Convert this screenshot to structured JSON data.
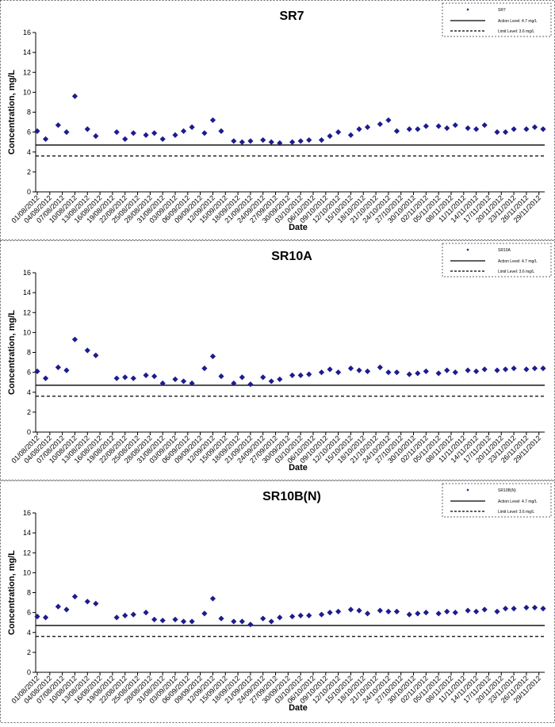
{
  "chart_data": [
    {
      "type": "scatter",
      "title": "SR7",
      "xlabel": "Date",
      "ylabel": "Concentration, mg/L",
      "ylim": [
        0,
        16
      ],
      "yticks": [
        0,
        2,
        4,
        6,
        8,
        10,
        12,
        14,
        16
      ],
      "xlim": [
        "01/08/2012",
        "30/11/2012"
      ],
      "xticks": [
        "01/08/2012",
        "04/08/2012",
        "07/08/2012",
        "10/08/2012",
        "13/08/2012",
        "16/08/2012",
        "19/08/2012",
        "22/08/2012",
        "25/08/2012",
        "28/08/2012",
        "31/08/2012",
        "03/09/2012",
        "06/09/2012",
        "09/09/2012",
        "12/09/2012",
        "15/09/2012",
        "18/09/2012",
        "21/09/2012",
        "24/09/2012",
        "27/09/2012",
        "30/09/2012",
        "03/10/2012",
        "06/10/2012",
        "09/10/2012",
        "12/10/2012",
        "15/10/2012",
        "18/10/2012",
        "21/10/2012",
        "24/10/2012",
        "27/10/2012",
        "30/10/2012",
        "02/11/2012",
        "05/11/2012",
        "08/11/2012",
        "11/11/2012",
        "14/11/2012",
        "17/11/2012",
        "20/11/2012",
        "23/11/2012",
        "26/11/2012",
        "29/11/2012"
      ],
      "series": [
        {
          "name": "SR7",
          "color": "#1c1c8f",
          "x": [
            "01/08/2012",
            "03/08/2012",
            "06/08/2012",
            "08/08/2012",
            "10/08/2012",
            "13/08/2012",
            "15/08/2012",
            "20/08/2012",
            "22/08/2012",
            "24/08/2012",
            "27/08/2012",
            "29/08/2012",
            "31/08/2012",
            "03/09/2012",
            "05/09/2012",
            "07/09/2012",
            "10/09/2012",
            "12/09/2012",
            "14/09/2012",
            "17/09/2012",
            "19/09/2012",
            "21/09/2012",
            "24/09/2012",
            "26/09/2012",
            "28/09/2012",
            "01/10/2012",
            "03/10/2012",
            "05/10/2012",
            "08/10/2012",
            "10/10/2012",
            "12/10/2012",
            "15/10/2012",
            "17/10/2012",
            "19/10/2012",
            "22/10/2012",
            "24/10/2012",
            "26/10/2012",
            "29/10/2012",
            "31/10/2012",
            "02/11/2012",
            "05/11/2012",
            "07/11/2012",
            "09/11/2012",
            "12/11/2012",
            "14/11/2012",
            "16/11/2012",
            "19/11/2012",
            "21/11/2012",
            "23/11/2012",
            "26/11/2012",
            "28/11/2012",
            "30/11/2012"
          ],
          "values": [
            6.1,
            5.3,
            6.7,
            6.0,
            9.6,
            6.3,
            5.6,
            6.0,
            5.3,
            5.9,
            5.7,
            5.9,
            5.3,
            5.7,
            6.1,
            6.5,
            5.9,
            7.2,
            6.1,
            5.1,
            5.0,
            5.1,
            5.2,
            5.0,
            4.9,
            5.0,
            5.1,
            5.2,
            5.2,
            5.6,
            6.0,
            5.7,
            6.3,
            6.5,
            6.8,
            7.2,
            6.1,
            6.3,
            6.3,
            6.6,
            6.6,
            6.4,
            6.7,
            6.4,
            6.3,
            6.7,
            6.0,
            6.0,
            6.3,
            6.3,
            6.5,
            6.3
          ]
        }
      ],
      "reference_lines": [
        {
          "name": "Action Level: 4.7 mg/L",
          "value": 4.7,
          "dash": false,
          "color": "#000000"
        },
        {
          "name": "Limit Level: 3.6 mg/L",
          "value": 3.6,
          "dash": true,
          "color": "#000000"
        }
      ]
    },
    {
      "type": "scatter",
      "title": "SR10A",
      "xlabel": "Date",
      "ylabel": "Concentration, mg/L",
      "ylim": [
        0,
        16
      ],
      "yticks": [
        0,
        2,
        4,
        6,
        8,
        10,
        12,
        14,
        16
      ],
      "xlim": [
        "01/08/2012",
        "30/11/2012"
      ],
      "xticks": [
        "01/08/2012",
        "04/08/2012",
        "07/08/2012",
        "10/08/2012",
        "13/08/2012",
        "16/08/2012",
        "19/08/2012",
        "22/08/2012",
        "25/08/2012",
        "28/08/2012",
        "31/08/2012",
        "03/09/2012",
        "06/09/2012",
        "09/09/2012",
        "12/09/2012",
        "15/09/2012",
        "18/09/2012",
        "21/09/2012",
        "24/09/2012",
        "27/09/2012",
        "30/09/2012",
        "03/10/2012",
        "06/10/2012",
        "09/10/2012",
        "12/10/2012",
        "15/10/2012",
        "18/10/2012",
        "21/10/2012",
        "24/10/2012",
        "27/10/2012",
        "30/10/2012",
        "02/11/2012",
        "05/11/2012",
        "08/11/2012",
        "11/11/2012",
        "14/11/2012",
        "17/11/2012",
        "20/11/2012",
        "23/11/2012",
        "26/11/2012",
        "29/11/2012"
      ],
      "series": [
        {
          "name": "SR10A",
          "color": "#1c1c8f",
          "x": [
            "01/08/2012",
            "03/08/2012",
            "06/08/2012",
            "08/08/2012",
            "10/08/2012",
            "13/08/2012",
            "15/08/2012",
            "20/08/2012",
            "22/08/2012",
            "24/08/2012",
            "27/08/2012",
            "29/08/2012",
            "31/08/2012",
            "03/09/2012",
            "05/09/2012",
            "07/09/2012",
            "10/09/2012",
            "12/09/2012",
            "14/09/2012",
            "17/09/2012",
            "19/09/2012",
            "21/09/2012",
            "24/09/2012",
            "26/09/2012",
            "28/09/2012",
            "01/10/2012",
            "03/10/2012",
            "05/10/2012",
            "08/10/2012",
            "10/10/2012",
            "12/10/2012",
            "15/10/2012",
            "17/10/2012",
            "19/10/2012",
            "22/10/2012",
            "24/10/2012",
            "26/10/2012",
            "29/10/2012",
            "31/10/2012",
            "02/11/2012",
            "05/11/2012",
            "07/11/2012",
            "09/11/2012",
            "12/11/2012",
            "14/11/2012",
            "16/11/2012",
            "19/11/2012",
            "21/11/2012",
            "23/11/2012",
            "26/11/2012",
            "28/11/2012",
            "30/11/2012"
          ],
          "values": [
            6.1,
            5.4,
            6.5,
            6.2,
            9.3,
            8.2,
            7.7,
            5.4,
            5.5,
            5.4,
            5.7,
            5.6,
            4.9,
            5.3,
            5.1,
            4.9,
            6.4,
            7.6,
            5.6,
            4.9,
            5.5,
            4.8,
            5.5,
            5.1,
            5.3,
            5.7,
            5.7,
            5.8,
            6.0,
            6.3,
            6.0,
            6.4,
            6.2,
            6.1,
            6.5,
            6.0,
            6.0,
            5.8,
            5.9,
            6.1,
            5.9,
            6.2,
            6.0,
            6.2,
            6.1,
            6.3,
            6.2,
            6.3,
            6.4,
            6.3,
            6.4,
            6.4
          ]
        }
      ],
      "reference_lines": [
        {
          "name": "Action Level: 4.7 mg/L",
          "value": 4.7,
          "dash": false,
          "color": "#000000"
        },
        {
          "name": "Limit Level: 3.6 mg/L",
          "value": 3.6,
          "dash": true,
          "color": "#000000"
        }
      ]
    },
    {
      "type": "scatter",
      "title": "SR10B(N)",
      "xlabel": "Date",
      "ylabel": "Concentration, mg/L",
      "ylim": [
        0,
        16
      ],
      "yticks": [
        0,
        2,
        4,
        6,
        8,
        10,
        12,
        14,
        16
      ],
      "xlim": [
        "01/08/2012",
        "30/11/2012"
      ],
      "xticks": [
        "01/08/2012",
        "04/08/2012",
        "07/08/2012",
        "10/08/2012",
        "13/08/2012",
        "16/08/2012",
        "19/08/2012",
        "22/08/2012",
        "25/08/2012",
        "28/08/2012",
        "31/08/2012",
        "03/09/2012",
        "06/09/2012",
        "09/09/2012",
        "12/09/2012",
        "15/09/2012",
        "18/09/2012",
        "21/09/2012",
        "24/09/2012",
        "27/09/2012",
        "30/09/2012",
        "03/10/2012",
        "06/10/2012",
        "09/10/2012",
        "12/10/2012",
        "15/10/2012",
        "18/10/2012",
        "21/10/2012",
        "24/10/2012",
        "27/10/2012",
        "30/10/2012",
        "02/11/2012",
        "05/11/2012",
        "08/11/2012",
        "11/11/2012",
        "14/11/2012",
        "17/11/2012",
        "20/11/2012",
        "23/11/2012",
        "26/11/2012",
        "29/11/2012"
      ],
      "series": [
        {
          "name": "SR10B(N)",
          "color": "#1c1c8f",
          "x": [
            "01/08/2012",
            "03/08/2012",
            "06/08/2012",
            "08/08/2012",
            "10/08/2012",
            "13/08/2012",
            "15/08/2012",
            "20/08/2012",
            "22/08/2012",
            "24/08/2012",
            "27/08/2012",
            "29/08/2012",
            "31/08/2012",
            "03/09/2012",
            "05/09/2012",
            "07/09/2012",
            "10/09/2012",
            "12/09/2012",
            "14/09/2012",
            "17/09/2012",
            "19/09/2012",
            "21/09/2012",
            "24/09/2012",
            "26/09/2012",
            "28/09/2012",
            "01/10/2012",
            "03/10/2012",
            "05/10/2012",
            "08/10/2012",
            "10/10/2012",
            "12/10/2012",
            "15/10/2012",
            "17/10/2012",
            "19/10/2012",
            "22/10/2012",
            "24/10/2012",
            "26/10/2012",
            "29/10/2012",
            "31/10/2012",
            "02/11/2012",
            "05/11/2012",
            "07/11/2012",
            "09/11/2012",
            "12/11/2012",
            "14/11/2012",
            "16/11/2012",
            "19/11/2012",
            "21/11/2012",
            "23/11/2012",
            "26/11/2012",
            "28/11/2012",
            "30/11/2012"
          ],
          "values": [
            5.6,
            5.5,
            6.6,
            6.3,
            7.6,
            7.1,
            6.9,
            5.5,
            5.7,
            5.8,
            6.0,
            5.3,
            5.2,
            5.3,
            5.1,
            5.1,
            5.9,
            7.4,
            5.4,
            5.1,
            5.1,
            4.8,
            5.4,
            5.1,
            5.5,
            5.6,
            5.7,
            5.7,
            5.8,
            6.0,
            6.1,
            6.3,
            6.2,
            5.9,
            6.2,
            6.1,
            6.1,
            5.8,
            5.9,
            6.0,
            5.9,
            6.1,
            6.0,
            6.2,
            6.1,
            6.3,
            6.1,
            6.4,
            6.4,
            6.5,
            6.5,
            6.4
          ]
        }
      ],
      "reference_lines": [
        {
          "name": "Action Level: 4.7 mg/L",
          "value": 4.7,
          "dash": false,
          "color": "#000000"
        },
        {
          "name": "Limit Level: 3.6 mg/L",
          "value": 3.6,
          "dash": true,
          "color": "#000000"
        }
      ]
    }
  ]
}
